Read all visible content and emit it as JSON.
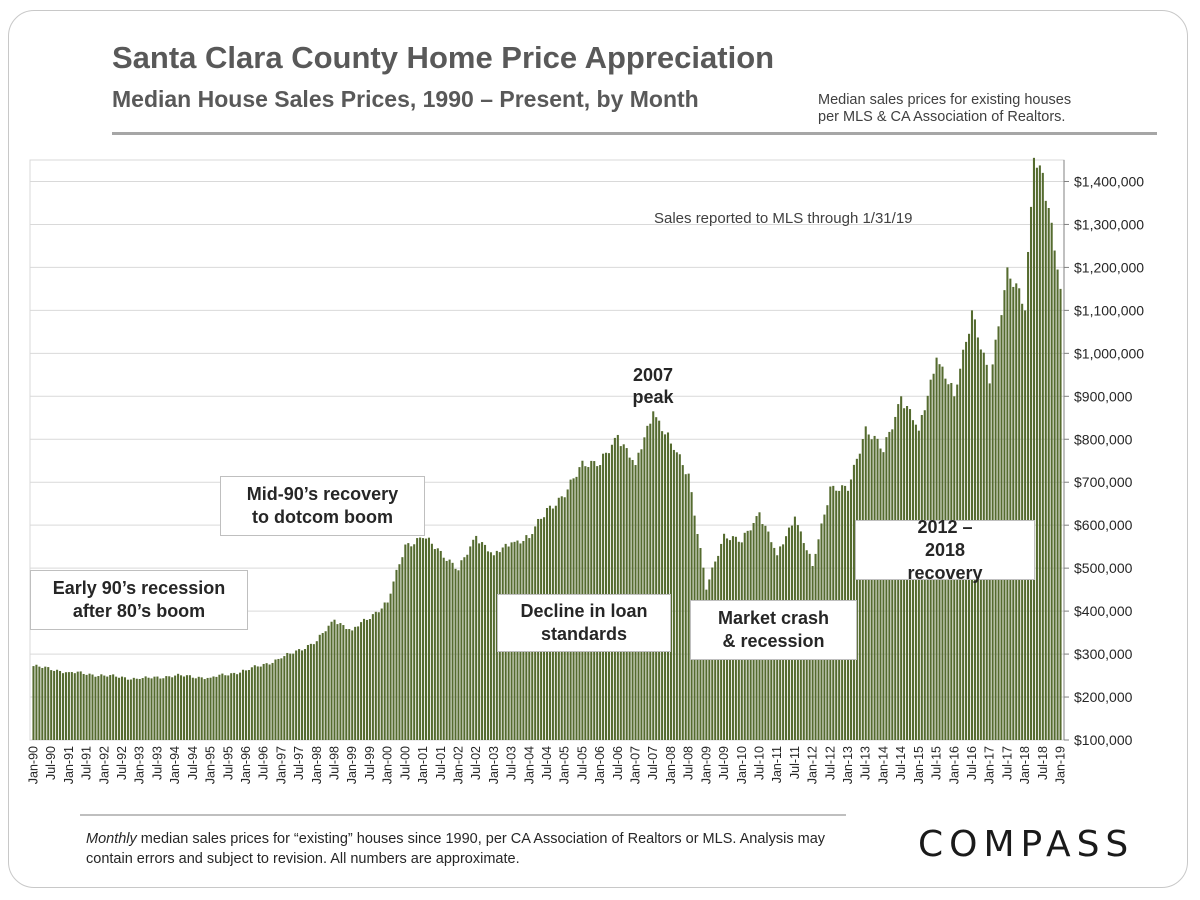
{
  "header": {
    "title": "Santa Clara County Home Price Appreciation",
    "subtitle": "Median House Sales Prices, 1990 – Present, by Month",
    "source_note_line1": "Median sales prices for existing houses",
    "source_note_line2": "per MLS & CA Association of Realtors."
  },
  "footer": {
    "note_italic": "Monthly",
    "note_rest": " median sales prices for “existing” houses since 1990, per CA Association of Realtors or MLS.  Analysis may contain errors and subject to revision. All numbers are approximate.",
    "logo_text": "COMPASS"
  },
  "chart_data": {
    "type": "bar",
    "title": "Santa Clara County Home Price Appreciation",
    "subtitle": "Median House Sales Prices, 1990 – Present, by Month",
    "frequency": "monthly",
    "start": "Jan-90",
    "end": "Jan-19",
    "bar_color": "#556b2f",
    "grid": true,
    "y_axis_side": "right",
    "ylim": [
      100000,
      1450000
    ],
    "ytick_values": [
      100000,
      200000,
      300000,
      400000,
      500000,
      600000,
      700000,
      800000,
      900000,
      1000000,
      1100000,
      1200000,
      1300000,
      1400000
    ],
    "ytick_labels": [
      "$100,000",
      "$200,000",
      "$300,000",
      "$400,000",
      "$500,000",
      "$600,000",
      "$700,000",
      "$800,000",
      "$900,000",
      "$1,000,000",
      "$1,100,000",
      "$1,200,000",
      "$1,300,000",
      "$1,400,000"
    ],
    "xtick_labels": [
      "Jan-90",
      "Jul-90",
      "Jan-91",
      "Jul-91",
      "Jan-92",
      "Jul-92",
      "Jan-93",
      "Jul-93",
      "Jan-94",
      "Jul-94",
      "Jan-95",
      "Jul-95",
      "Jan-96",
      "Jul-96",
      "Jan-97",
      "Jul-97",
      "Jan-98",
      "Jul-98",
      "Jan-99",
      "Jul-99",
      "Jan-00",
      "Jul-00",
      "Jan-01",
      "Jul-01",
      "Jan-02",
      "Jul-02",
      "Jan-03",
      "Jul-03",
      "Jan-04",
      "Jul-04",
      "Jan-05",
      "Jul-05",
      "Jan-06",
      "Jul-06",
      "Jan-07",
      "Jul-07",
      "Jan-08",
      "Jul-08",
      "Jan-09",
      "Jul-09",
      "Jan-10",
      "Jul-10",
      "Jan-11",
      "Jul-11",
      "Jan-12",
      "Jul-12",
      "Jan-13",
      "Jul-13",
      "Jan-14",
      "Jul-14",
      "Jan-15",
      "Jul-15",
      "Jan-16",
      "Jul-16",
      "Jan-17",
      "Jul-17",
      "Jan-18",
      "Jul-18",
      "Jan-19"
    ],
    "key_values": {
      "Jan-90": 272000,
      "Jan-91": 258000,
      "Jan-92": 250000,
      "Jan-93": 242000,
      "Jan-94": 250000,
      "Jan-95": 245000,
      "Jan-96": 262000,
      "Jan-97": 290000,
      "Jan-98": 330000,
      "Jul-98": 380000,
      "Jan-99": 355000,
      "Jan-00": 420000,
      "Jul-00": 555000,
      "Jan-01": 570000,
      "Jul-01": 540000,
      "Jan-02": 495000,
      "Jul-02": 575000,
      "Jan-03": 530000,
      "Jul-03": 560000,
      "Jan-04": 570000,
      "Jul-04": 640000,
      "Jan-05": 665000,
      "Jul-05": 750000,
      "Jan-06": 740000,
      "Jul-06": 810000,
      "Jan-07": 740000,
      "Jul-07": 865000,
      "Jan-08": 790000,
      "Jul-08": 720000,
      "Jan-09": 450000,
      "Jul-09": 580000,
      "Jan-10": 560000,
      "Jul-10": 630000,
      "Jan-11": 530000,
      "Jul-11": 620000,
      "Jan-12": 505000,
      "Jul-12": 690000,
      "Jan-13": 680000,
      "Jul-13": 830000,
      "Jan-14": 770000,
      "Jul-14": 900000,
      "Jan-15": 820000,
      "Jul-15": 990000,
      "Jan-16": 900000,
      "Jul-16": 1100000,
      "Jan-17": 930000,
      "Jul-17": 1200000,
      "Jan-18": 1100000,
      "Apr-18": 1455000,
      "Jul-18": 1420000,
      "Jan-19": 1150000
    },
    "annotations": {
      "early90s": "Early 90’s recession after 80’s boom",
      "mid90s": "Mid-90’s recovery to dotcom boom",
      "decline": "Decline in loan standards",
      "peak2007": "2007 peak",
      "crash": "Market crash & recession",
      "recovery": "2012 – 2018 recovery",
      "sales_note": "Sales reported to MLS through 1/31/19"
    }
  }
}
